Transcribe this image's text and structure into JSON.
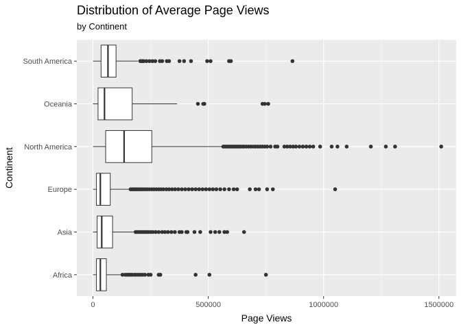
{
  "chart_data": {
    "type": "boxplot",
    "title": "Distribution of Average Page Views",
    "subtitle": "by Continent",
    "xlabel": "Page Views",
    "ylabel": "Continent",
    "xlim": [
      -70000,
      1575000
    ],
    "x_ticks": [
      0,
      500000,
      1000000,
      1500000
    ],
    "x_tick_labels": [
      "0",
      "500000",
      "1000000",
      "1500000"
    ],
    "grid": true,
    "legend": "none",
    "categories": [
      "South America",
      "Oceania",
      "North America",
      "Europe",
      "Asia",
      "Africa"
    ],
    "boxes": [
      {
        "category": "South America",
        "whisker_low": 0,
        "q1": 35000,
        "median": 65000,
        "q3": 100000,
        "whisker_high": 195000,
        "outliers": [
          205000,
          210000,
          215000,
          220000,
          232000,
          245000,
          258000,
          270000,
          290000,
          300000,
          320000,
          330000,
          375000,
          395000,
          425000,
          495000,
          510000,
          590000,
          598000,
          865000
        ]
      },
      {
        "category": "Oceania",
        "whisker_low": 0,
        "q1": 22000,
        "median": 50000,
        "q3": 170000,
        "whisker_high": 365000,
        "outliers": [
          455000,
          478000,
          483000,
          735000,
          745000,
          760000
        ]
      },
      {
        "category": "North America",
        "whisker_low": 0,
        "q1": 55000,
        "median": 135000,
        "q3": 255000,
        "whisker_high": 560000,
        "outliers": [
          565000,
          572000,
          580000,
          588000,
          595000,
          603000,
          610000,
          618000,
          625000,
          633000,
          640000,
          648000,
          655000,
          665000,
          675000,
          685000,
          695000,
          705000,
          715000,
          725000,
          735000,
          745000,
          755000,
          770000,
          790000,
          800000,
          830000,
          842000,
          855000,
          868000,
          880000,
          895000,
          910000,
          925000,
          940000,
          955000,
          985000,
          1035000,
          1060000,
          1100000,
          1205000,
          1270000,
          1310000,
          1510000
        ]
      },
      {
        "category": "Europe",
        "whisker_low": 0,
        "q1": 15000,
        "median": 32000,
        "q3": 75000,
        "whisker_high": 160000,
        "outliers": [
          163000,
          168000,
          174000,
          180000,
          186000,
          192000,
          198000,
          205000,
          212000,
          220000,
          228000,
          236000,
          245000,
          255000,
          265000,
          275000,
          285000,
          295000,
          305000,
          318000,
          330000,
          343000,
          356000,
          370000,
          385000,
          400000,
          415000,
          430000,
          445000,
          460000,
          475000,
          490000,
          505000,
          520000,
          535000,
          552000,
          570000,
          590000,
          610000,
          625000,
          680000,
          705000,
          720000,
          755000,
          780000,
          1050000
        ]
      },
      {
        "category": "Asia",
        "whisker_low": 0,
        "q1": 18000,
        "median": 38000,
        "q3": 85000,
        "whisker_high": 180000,
        "outliers": [
          185000,
          192000,
          200000,
          208000,
          216000,
          224000,
          232000,
          240000,
          250000,
          260000,
          272000,
          285000,
          300000,
          312000,
          325000,
          340000,
          355000,
          375000,
          385000,
          405000,
          410000,
          440000,
          465000,
          510000,
          530000,
          548000,
          570000,
          582000,
          655000
        ]
      },
      {
        "category": "Africa",
        "whisker_low": 0,
        "q1": 15000,
        "median": 32000,
        "q3": 58000,
        "whisker_high": 125000,
        "outliers": [
          128000,
          140000,
          148000,
          155000,
          162000,
          170000,
          180000,
          188000,
          196000,
          205000,
          215000,
          225000,
          240000,
          250000,
          285000,
          292000,
          445000,
          505000,
          750000
        ]
      }
    ],
    "colors": {
      "panel_bg": "#ebebeb",
      "grid_major": "#ffffff",
      "box_fill": "#ffffff",
      "box_line": "#333333",
      "outlier": "#333333",
      "tick_text": "#4d4d4d"
    }
  }
}
